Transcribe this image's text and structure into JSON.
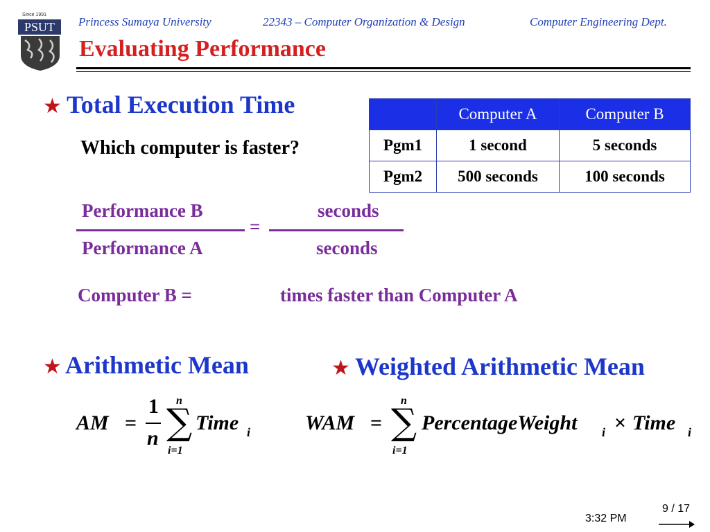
{
  "header": {
    "logo_text": "PSUT",
    "logo_since": "Since 1991",
    "university": "Princess Sumaya University",
    "course": "22343 – Computer Organization & Design",
    "department": "Computer Engineering Dept."
  },
  "slide": {
    "title": "Evaluating Performance",
    "bullet1": "Total Execution Time",
    "question": "Which computer is faster?",
    "table": {
      "headers": [
        "",
        "Computer A",
        "Computer B"
      ],
      "rows": [
        [
          "Pgm1",
          "1 second",
          "5 seconds"
        ],
        [
          "Pgm2",
          "500 seconds",
          "100 seconds"
        ]
      ]
    },
    "ratio": {
      "num_left": "Performance B",
      "den_left": "Performance A",
      "equals": "=",
      "num_right": "seconds",
      "den_right": "seconds"
    },
    "conclusion_left": "Computer B =",
    "conclusion_right": "times faster than Computer A",
    "bullet2": "Arithmetic Mean",
    "bullet3": "Weighted Arithmetic Mean",
    "am_formula": {
      "lhs": "AM",
      "eq": "=",
      "frac_num": "1",
      "frac_den": "n",
      "sum_upper": "n",
      "sum_lower": "i=1",
      "term": "Time",
      "term_sub": "i"
    },
    "wam_formula": {
      "lhs": "WAM",
      "eq": "=",
      "sum_upper": "n",
      "sum_lower": "i=1",
      "term1": "PercentageWeight",
      "term1_sub": "i",
      "times": "×",
      "term2": "Time",
      "term2_sub": "i"
    }
  },
  "footer": {
    "page": "9 / 17",
    "time": "3:32 PM"
  },
  "colors": {
    "title": "#d42020",
    "header": "#1f3fb5",
    "bullet": "#1c37c9",
    "purple": "#7a2c9a",
    "table_header": "#1a2fe6"
  }
}
